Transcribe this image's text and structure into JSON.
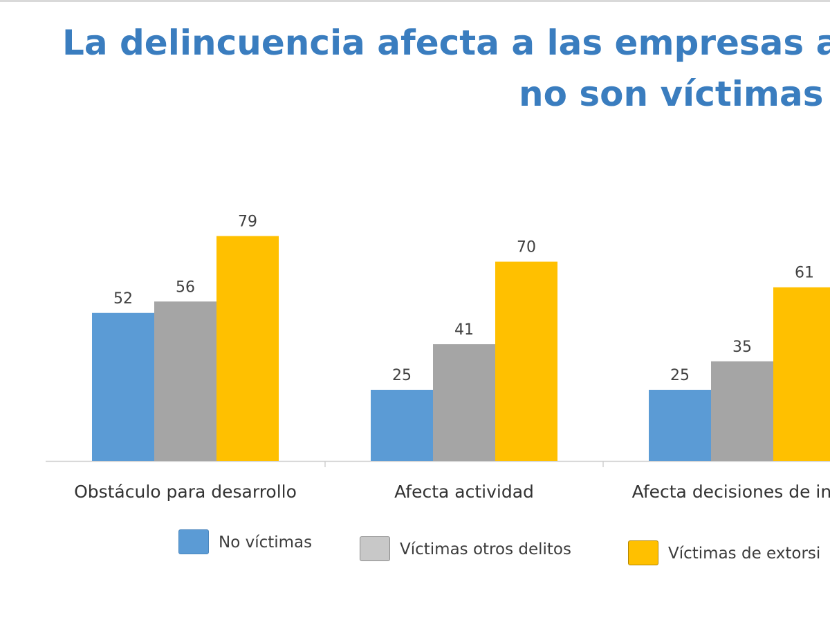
{
  "title": {
    "line1": "La delincuencia afecta a las empresas aún c",
    "line2": "no son víctimas d"
  },
  "chart_data": {
    "type": "bar",
    "categories": [
      "Obstáculo para desarrollo",
      "Afecta actividad",
      "Afecta decisiones de inve"
    ],
    "series": [
      {
        "name": "No víctimas",
        "values": [
          52,
          25,
          25
        ],
        "color": "#5b9bd5"
      },
      {
        "name": "Víctimas otros delitos",
        "values": [
          56,
          41,
          35
        ],
        "color": "#a5a5a5"
      },
      {
        "name": "Víctimas de extorsi",
        "values": [
          79,
          70,
          61
        ],
        "color": "#ffc000"
      }
    ],
    "data_labels": true,
    "ylim": [
      0,
      100
    ],
    "grid": false,
    "legend_position": "bottom"
  },
  "legend": {
    "items": [
      {
        "label": "No víctimas",
        "color": "#5b9bd5",
        "border": "#4a86bd"
      },
      {
        "label": "Víctimas otros delitos",
        "color": "#c8c8c8",
        "border": "#8c8c8c"
      },
      {
        "label": "Víctimas de extorsi",
        "color": "#ffc000",
        "border": "#b08400"
      }
    ]
  }
}
